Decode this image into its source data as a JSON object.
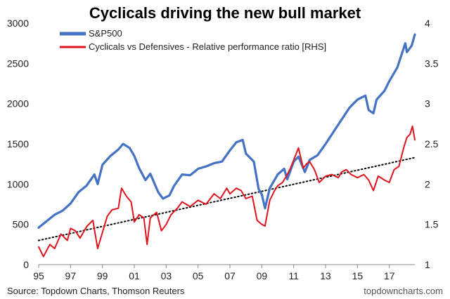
{
  "chart_data": {
    "type": "line",
    "title": "Cyclicals driving the new bull market",
    "source": "Source: Topdown Charts, Thomson Reuters",
    "watermark": "topdowncharts.com",
    "x_tick_labels": [
      "95",
      "97",
      "99",
      "01",
      "03",
      "05",
      "07",
      "09",
      "11",
      "13",
      "15",
      "17"
    ],
    "x_tick_years": [
      1995,
      1997,
      1999,
      2001,
      2003,
      2005,
      2007,
      2009,
      2011,
      2013,
      2015,
      2017
    ],
    "xlim": [
      1995,
      2018.6
    ],
    "left_axis": {
      "ylim": [
        0,
        3000
      ],
      "ticks": [
        0,
        500,
        1000,
        1500,
        2000,
        2500,
        3000
      ],
      "tick_labels": [
        "0",
        "500",
        "1000",
        "1500",
        "2000",
        "2500",
        "3000"
      ]
    },
    "right_axis": {
      "ylim": [
        1,
        4
      ],
      "ticks": [
        1,
        1.5,
        2,
        2.5,
        3,
        3.5,
        4
      ],
      "tick_labels": [
        "1",
        "1.5",
        "2",
        "2.5",
        "3",
        "3.5",
        "4"
      ]
    },
    "series": [
      {
        "name": "S&P500",
        "axis": "left",
        "color": "#4472C4",
        "points": [
          [
            1995.0,
            460
          ],
          [
            1995.5,
            540
          ],
          [
            1996.0,
            620
          ],
          [
            1996.5,
            670
          ],
          [
            1997.0,
            760
          ],
          [
            1997.5,
            900
          ],
          [
            1998.0,
            980
          ],
          [
            1998.5,
            1120
          ],
          [
            1998.7,
            1000
          ],
          [
            1999.0,
            1240
          ],
          [
            1999.5,
            1350
          ],
          [
            2000.0,
            1430
          ],
          [
            2000.3,
            1500
          ],
          [
            2000.7,
            1450
          ],
          [
            2001.0,
            1350
          ],
          [
            2001.3,
            1200
          ],
          [
            2001.7,
            1050
          ],
          [
            2002.0,
            1130
          ],
          [
            2002.5,
            900
          ],
          [
            2002.8,
            820
          ],
          [
            2003.2,
            860
          ],
          [
            2003.5,
            980
          ],
          [
            2004.0,
            1120
          ],
          [
            2004.5,
            1110
          ],
          [
            2005.0,
            1190
          ],
          [
            2005.5,
            1220
          ],
          [
            2006.0,
            1260
          ],
          [
            2006.5,
            1280
          ],
          [
            2007.0,
            1420
          ],
          [
            2007.4,
            1520
          ],
          [
            2007.8,
            1550
          ],
          [
            2008.0,
            1380
          ],
          [
            2008.5,
            1280
          ],
          [
            2008.8,
            940
          ],
          [
            2009.0,
            870
          ],
          [
            2009.2,
            700
          ],
          [
            2009.5,
            950
          ],
          [
            2010.0,
            1120
          ],
          [
            2010.4,
            1190
          ],
          [
            2010.6,
            1060
          ],
          [
            2011.0,
            1280
          ],
          [
            2011.3,
            1340
          ],
          [
            2011.7,
            1150
          ],
          [
            2012.0,
            1300
          ],
          [
            2012.5,
            1360
          ],
          [
            2013.0,
            1500
          ],
          [
            2013.5,
            1650
          ],
          [
            2014.0,
            1800
          ],
          [
            2014.5,
            1950
          ],
          [
            2015.0,
            2050
          ],
          [
            2015.5,
            2100
          ],
          [
            2015.7,
            1920
          ],
          [
            2016.0,
            1880
          ],
          [
            2016.2,
            2050
          ],
          [
            2016.7,
            2160
          ],
          [
            2017.0,
            2280
          ],
          [
            2017.5,
            2450
          ],
          [
            2018.0,
            2750
          ],
          [
            2018.1,
            2640
          ],
          [
            2018.4,
            2720
          ],
          [
            2018.6,
            2860
          ]
        ]
      },
      {
        "name": "Cyclicals vs Defensives - Relative performance ratio [RHS]",
        "axis": "right",
        "color": "#E0141E",
        "points": [
          [
            1995.0,
            1.22
          ],
          [
            1995.3,
            1.1
          ],
          [
            1995.7,
            1.25
          ],
          [
            1996.0,
            1.2
          ],
          [
            1996.4,
            1.38
          ],
          [
            1996.8,
            1.3
          ],
          [
            1997.0,
            1.45
          ],
          [
            1997.3,
            1.42
          ],
          [
            1997.6,
            1.33
          ],
          [
            1998.0,
            1.47
          ],
          [
            1998.4,
            1.55
          ],
          [
            1998.7,
            1.2
          ],
          [
            1999.0,
            1.4
          ],
          [
            1999.3,
            1.6
          ],
          [
            1999.6,
            1.68
          ],
          [
            2000.0,
            1.7
          ],
          [
            2000.2,
            1.95
          ],
          [
            2000.5,
            1.85
          ],
          [
            2000.8,
            1.78
          ],
          [
            2001.0,
            1.53
          ],
          [
            2001.3,
            1.62
          ],
          [
            2001.6,
            1.58
          ],
          [
            2001.8,
            1.25
          ],
          [
            2002.0,
            1.58
          ],
          [
            2002.4,
            1.65
          ],
          [
            2002.7,
            1.42
          ],
          [
            2003.0,
            1.5
          ],
          [
            2003.3,
            1.62
          ],
          [
            2003.7,
            1.7
          ],
          [
            2004.0,
            1.78
          ],
          [
            2004.5,
            1.72
          ],
          [
            2005.0,
            1.8
          ],
          [
            2005.5,
            1.75
          ],
          [
            2006.0,
            1.88
          ],
          [
            2006.4,
            1.82
          ],
          [
            2006.8,
            1.95
          ],
          [
            2007.0,
            1.88
          ],
          [
            2007.4,
            1.95
          ],
          [
            2007.7,
            1.92
          ],
          [
            2008.0,
            1.82
          ],
          [
            2008.4,
            1.85
          ],
          [
            2008.7,
            1.55
          ],
          [
            2009.0,
            1.5
          ],
          [
            2009.2,
            1.48
          ],
          [
            2009.5,
            1.8
          ],
          [
            2009.8,
            1.92
          ],
          [
            2010.0,
            1.98
          ],
          [
            2010.3,
            2.02
          ],
          [
            2010.6,
            2.12
          ],
          [
            2010.8,
            2.2
          ],
          [
            2011.0,
            2.3
          ],
          [
            2011.3,
            2.45
          ],
          [
            2011.6,
            2.2
          ],
          [
            2011.8,
            2.25
          ],
          [
            2012.0,
            2.28
          ],
          [
            2012.3,
            2.18
          ],
          [
            2012.6,
            2.02
          ],
          [
            2013.0,
            2.1
          ],
          [
            2013.4,
            2.12
          ],
          [
            2013.8,
            2.08
          ],
          [
            2014.0,
            2.15
          ],
          [
            2014.3,
            2.18
          ],
          [
            2014.6,
            2.12
          ],
          [
            2015.0,
            2.08
          ],
          [
            2015.4,
            2.12
          ],
          [
            2015.7,
            2.05
          ],
          [
            2016.0,
            1.92
          ],
          [
            2016.3,
            2.1
          ],
          [
            2016.7,
            2.05
          ],
          [
            2017.0,
            2.02
          ],
          [
            2017.3,
            2.18
          ],
          [
            2017.6,
            2.22
          ],
          [
            2017.9,
            2.45
          ],
          [
            2018.1,
            2.58
          ],
          [
            2018.3,
            2.62
          ],
          [
            2018.45,
            2.72
          ],
          [
            2018.6,
            2.55
          ]
        ]
      },
      {
        "name": "trend",
        "axis": "right",
        "color": "#000000",
        "style": "dotted",
        "points": [
          [
            1995.0,
            1.3
          ],
          [
            2018.6,
            2.33
          ]
        ]
      }
    ]
  }
}
